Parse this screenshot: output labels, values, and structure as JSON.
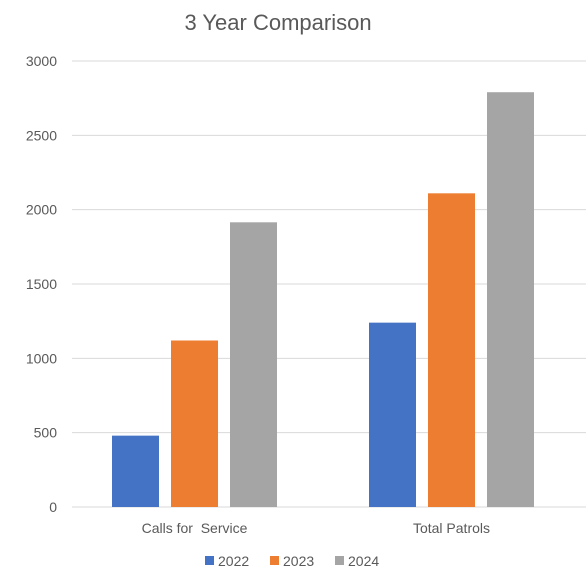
{
  "chart_data": {
    "type": "bar",
    "title": "3 Year Comparison",
    "xlabel": "",
    "ylabel": "",
    "categories": [
      "Calls for  Service",
      "Total Patrols"
    ],
    "series": [
      {
        "name": "2022",
        "values": [
          480,
          1240
        ],
        "color": "#4472c4"
      },
      {
        "name": "2023",
        "values": [
          1120,
          2110
        ],
        "color": "#ed7d31"
      },
      {
        "name": "2024",
        "values": [
          1915,
          2790
        ],
        "color": "#a5a5a5"
      }
    ],
    "ylim": [
      0,
      3000
    ],
    "yticks": [
      0,
      500,
      1000,
      1500,
      2000,
      2500,
      3000
    ],
    "grid": true,
    "legend": "bottom"
  }
}
